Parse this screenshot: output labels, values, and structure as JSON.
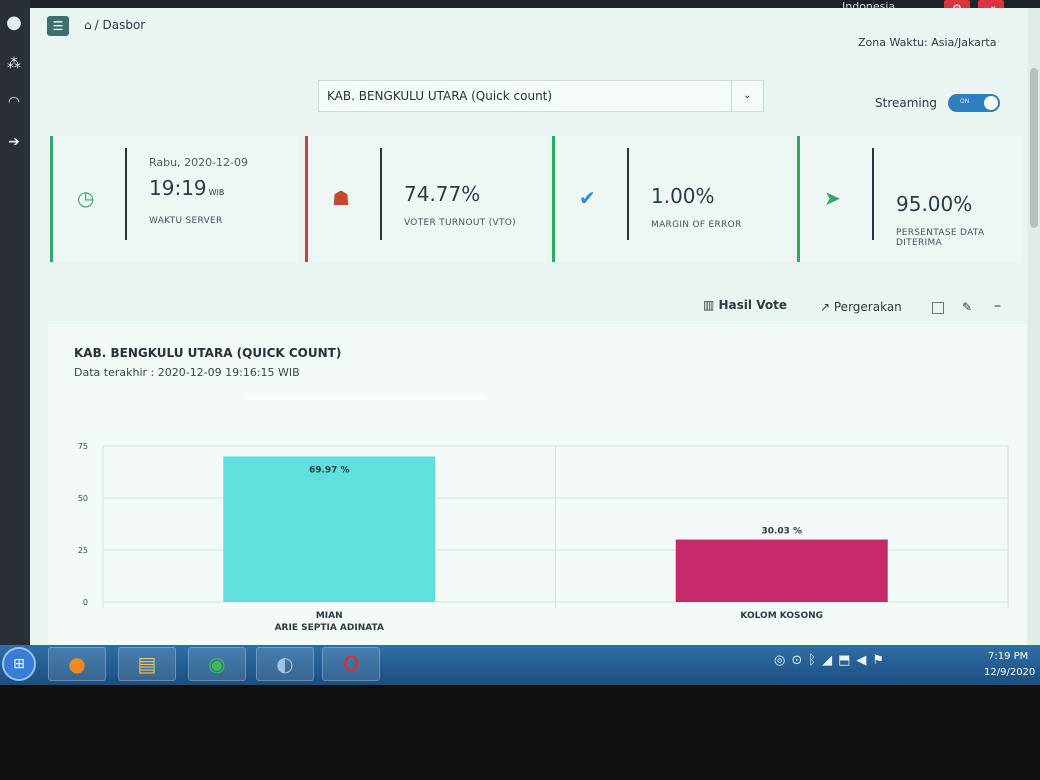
{
  "topbar": {
    "language": "Indonesia"
  },
  "header": {
    "breadcrumb": "/ Dasbor",
    "timezone": "Zona Waktu: Asia/Jakarta"
  },
  "region_select": {
    "value": "KAB. BENGKULU UTARA (Quick count)"
  },
  "streaming": {
    "label": "Streaming",
    "toggle_text": "ON",
    "enabled": true
  },
  "cards": {
    "server": {
      "date": "Rabu, 2020-12-09",
      "time": "19:19",
      "unit": "WIB",
      "label": "WAKTU SERVER"
    },
    "turnout": {
      "value": "74.77%",
      "label": "VOTER TURNOUT (VTO)"
    },
    "margin": {
      "value": "1.00%",
      "label": "MARGIN OF ERROR"
    },
    "data": {
      "value": "95.00%",
      "label": "PERSENTASE DATA DITERIMA"
    }
  },
  "toolbar": {
    "hasil_vote": "Hasil Vote",
    "pergerakan": "Pergerakan"
  },
  "chart_panel": {
    "title": "KAB. BENGKULU UTARA (QUICK COUNT)",
    "subtitle": "Data terakhir : 2020-12-09 19:16:15 WIB"
  },
  "chart_data": {
    "type": "bar",
    "categories": [
      "MIAN\nARIE SEPTIA ADINATA",
      "KOLOM KOSONG"
    ],
    "category_lines": [
      [
        "MIAN",
        "ARIE SEPTIA ADINATA"
      ],
      [
        "KOLOM KOSONG"
      ]
    ],
    "values": [
      69.97,
      30.03
    ],
    "data_labels": [
      "69.97 %",
      "30.03 %"
    ],
    "colors": [
      "#5fe0dc",
      "#c42a6a"
    ],
    "ylim": [
      0,
      75
    ],
    "yticks": [
      0,
      25,
      50,
      75
    ],
    "grid": true
  },
  "taskbar": {
    "apps": [
      "firefox-icon",
      "file-explorer-icon",
      "chrome-icon",
      "search-app-icon",
      "opera-icon"
    ],
    "time": "7:19 PM",
    "date": "12/9/2020"
  }
}
